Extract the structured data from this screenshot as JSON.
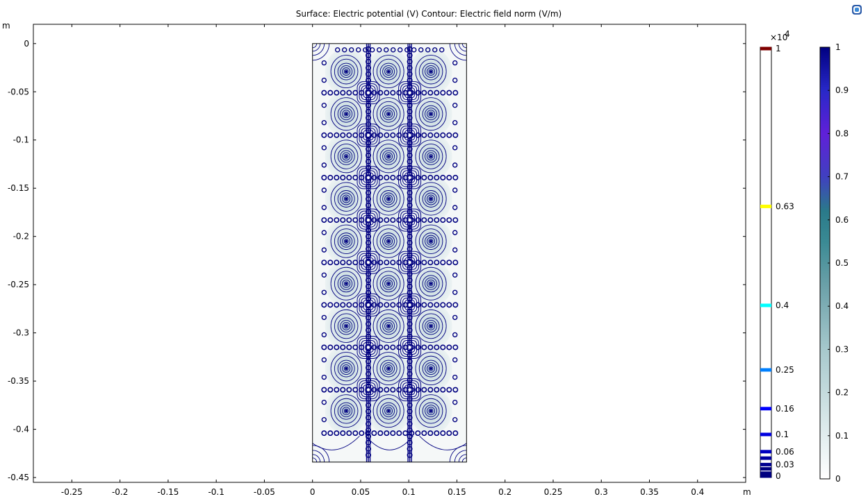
{
  "title": "Surface: Electric potential (V)  Contour: Electric field norm (V/m)",
  "icons": {
    "corner": "comsol-logo-icon"
  },
  "colors": {
    "background": "#ffffff",
    "contour": "#000080",
    "domain_edge": "#000000"
  },
  "chart_data": [
    {
      "type": "heatmap",
      "title": "Surface: Electric potential (V)  Contour: Electric field norm (V/m)",
      "x_unit": "m",
      "y_unit": "m",
      "xlim": [
        -0.29,
        0.45
      ],
      "ylim": [
        -0.455,
        0.02
      ],
      "x_ticks": [
        -0.25,
        -0.2,
        -0.15,
        -0.1,
        -0.05,
        0,
        0.05,
        0.1,
        0.15,
        0.2,
        0.25,
        0.3,
        0.35,
        0.4
      ],
      "x_tick_labels": [
        "-0.25",
        "-0.2",
        "-0.15",
        "-0.1",
        "-0.05",
        "0",
        "0.05",
        "0.1",
        "0.15",
        "0.2",
        "0.25",
        "0.3",
        "0.35",
        "0.4"
      ],
      "y_ticks": [
        0,
        -0.05,
        -0.1,
        -0.15,
        -0.2,
        -0.25,
        -0.3,
        -0.35,
        -0.4,
        -0.45
      ],
      "y_tick_labels": [
        "0",
        "-0.05",
        "-0.1",
        "-0.15",
        "-0.2",
        "-0.25",
        "-0.3",
        "-0.35",
        "-0.4",
        "-0.45"
      ],
      "domain": {
        "x": [
          0,
          0.16
        ],
        "y": [
          -0.434,
          0
        ]
      },
      "electrode_columns_x": [
        0.035,
        0.079,
        0.123
      ],
      "electrode_rows_y": [
        -0.029,
        -0.073,
        -0.117,
        -0.161,
        -0.205,
        -0.249,
        -0.293,
        -0.337,
        -0.381
      ],
      "grid_lines_x": [
        0.058,
        0.101
      ],
      "grid_nodes_y": [
        -0.051,
        -0.095,
        -0.139,
        -0.183,
        -0.227,
        -0.271,
        -0.315,
        -0.359
      ]
    },
    {
      "type": "legend",
      "name": "Contour: Electric field norm (V/m)",
      "multiplier": "×10",
      "multiplier_exponent": "4",
      "range": [
        0,
        1
      ],
      "levels": [
        {
          "value": 1,
          "label": "1",
          "color": "#800000"
        },
        {
          "value": 0.63,
          "label": "0.63",
          "color": "#ffff00"
        },
        {
          "value": 0.4,
          "label": "0.4",
          "color": "#00ffff"
        },
        {
          "value": 0.25,
          "label": "0.25",
          "color": "#0080ff"
        },
        {
          "value": 0.16,
          "label": "0.16",
          "color": "#0000ff"
        },
        {
          "value": 0.1,
          "label": "0.1",
          "color": "#0000e0"
        },
        {
          "value": 0.06,
          "label": "0.06",
          "color": "#0000c0"
        },
        {
          "value": 0.045,
          "label": "",
          "color": "#0000a0"
        },
        {
          "value": 0.03,
          "label": "0.03",
          "color": "#000090"
        },
        {
          "value": 0.02,
          "label": "",
          "color": "#000080"
        },
        {
          "value": 0.01,
          "label": "",
          "color": "#000080"
        },
        {
          "value": 0,
          "label": "0",
          "color": "#000080"
        }
      ]
    },
    {
      "type": "colorbar",
      "name": "Surface: Electric potential (V)",
      "range": [
        0,
        1
      ],
      "ticks": [
        1,
        0.9,
        0.8,
        0.7,
        0.6,
        0.5,
        0.4,
        0.3,
        0.2,
        0.1,
        0
      ],
      "tick_labels": [
        "1",
        "0.9",
        "0.8",
        "0.7",
        "0.6",
        "0.5",
        "0.4",
        "0.3",
        "0.2",
        "0.1",
        "0"
      ],
      "gradient": [
        {
          "stop": 0,
          "color": "#ffffff"
        },
        {
          "stop": 0.15,
          "color": "#d3e4e6"
        },
        {
          "stop": 0.3,
          "color": "#a6c8cc"
        },
        {
          "stop": 0.45,
          "color": "#6aa0a8"
        },
        {
          "stop": 0.55,
          "color": "#3a8a94"
        },
        {
          "stop": 0.62,
          "color": "#2a7a8a"
        },
        {
          "stop": 0.7,
          "color": "#4040c0"
        },
        {
          "stop": 0.8,
          "color": "#6020d8"
        },
        {
          "stop": 0.9,
          "color": "#2828c8"
        },
        {
          "stop": 1,
          "color": "#000080"
        }
      ]
    }
  ]
}
